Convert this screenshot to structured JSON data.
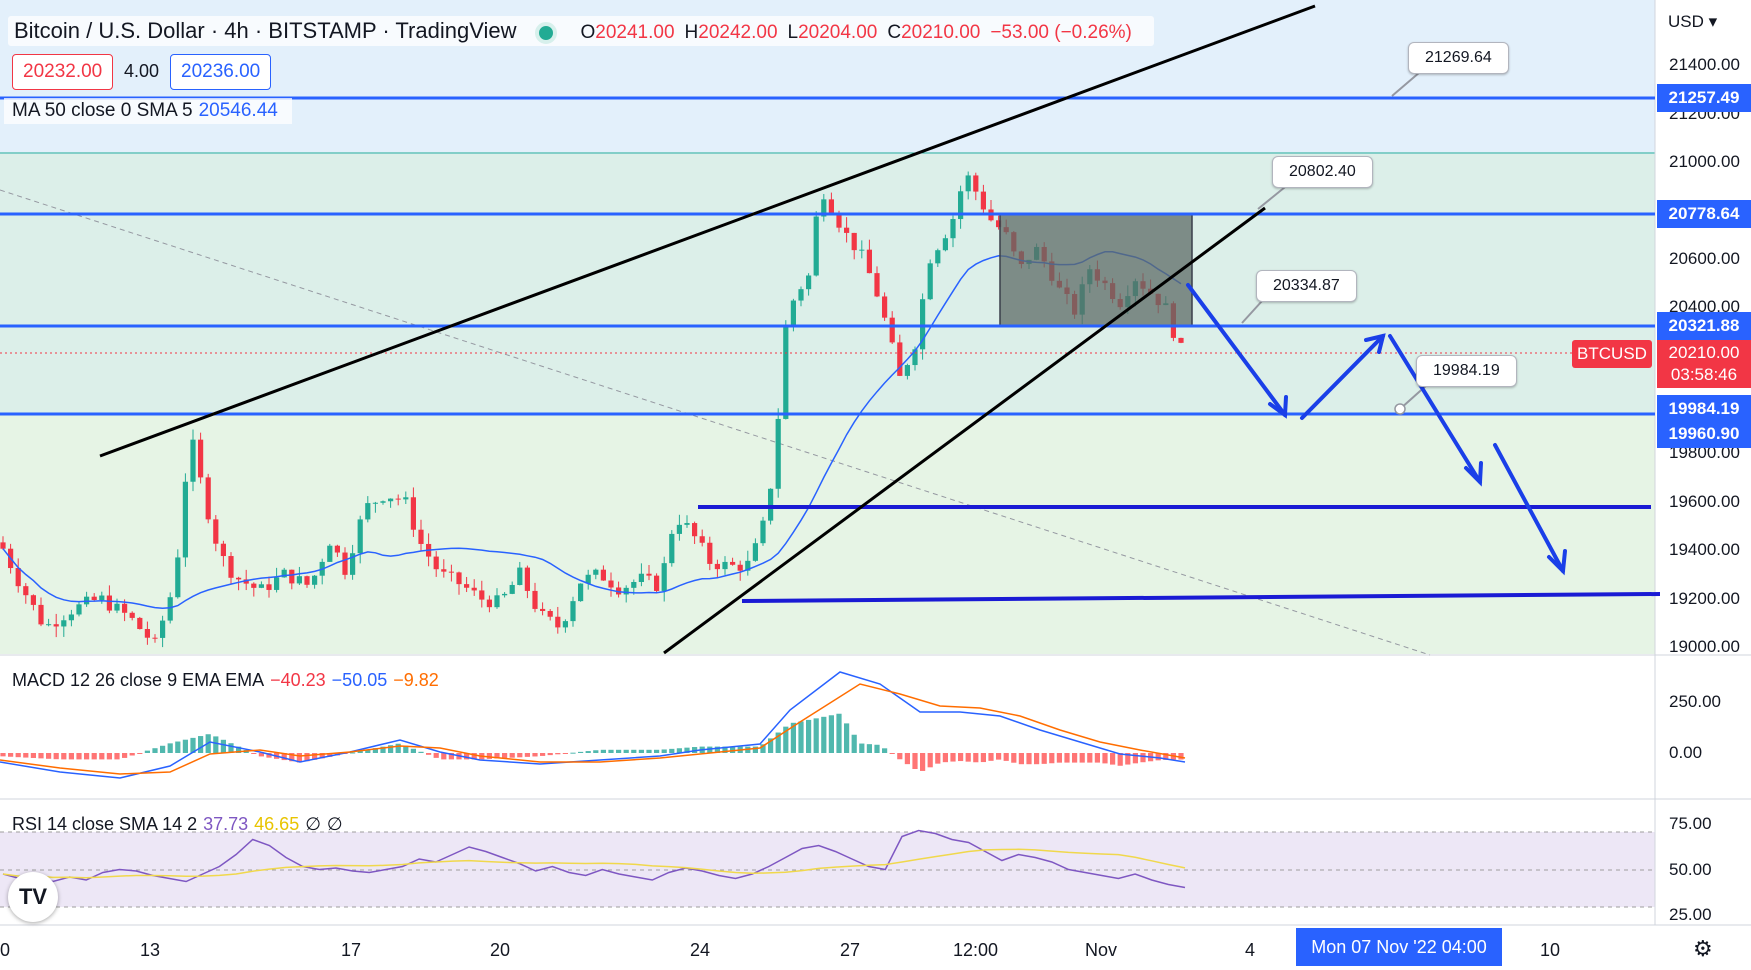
{
  "header": {
    "symbol": "Bitcoin / U.S. Dollar · 4h · BITSTAMP · TradingView",
    "ohlc": {
      "o_label": "O",
      "o": "20241.00",
      "h_label": "H",
      "h": "20242.00",
      "l_label": "L",
      "l": "20204.00",
      "c_label": "C",
      "c": "20210.00",
      "change": "−53.00 (−0.26%)"
    },
    "bid": "20232.00",
    "spread": "4.00",
    "ask": "20236.00"
  },
  "ma_legend": {
    "label": "MA 50 close 0 SMA 5",
    "value": "20546.44"
  },
  "macd_legend": {
    "label": "MACD 12 26 close 9 EMA EMA",
    "v1": "−40.23",
    "v2": "−50.05",
    "v3": "−9.82"
  },
  "rsi_legend": {
    "label": "RSI 14 close SMA 14 2",
    "v1": "37.73",
    "v2": "46.65",
    "v3": "∅",
    "v4": "∅"
  },
  "price_axis": {
    "currency": "USD",
    "ticks": [
      "21400.00",
      "21200.00",
      "21000.00",
      "20600.00",
      "20400.00",
      "19800.00",
      "19600.00",
      "19400.00",
      "19200.00",
      "19000.00"
    ],
    "tags": [
      "21257.49",
      "20778.64",
      "20321.88",
      "19984.19",
      "19960.90"
    ],
    "current_symbol": "BTCUSD",
    "current_price": "20210.00",
    "countdown": "03:58:46"
  },
  "callouts": [
    "21269.64",
    "20802.40",
    "20334.87",
    "19984.19"
  ],
  "macd_axis": [
    "250.00",
    "0.00"
  ],
  "rsi_axis": [
    "75.00",
    "50.00",
    "25.00"
  ],
  "time_axis": {
    "labels": [
      "0",
      "13",
      "17",
      "20",
      "24",
      "27",
      "12:00",
      "Nov",
      "4",
      "10"
    ],
    "highlight": "Mon 07 Nov '22   04:00"
  },
  "logo": "TV",
  "colors": {
    "up": "#22ab94",
    "down": "#f23645",
    "accent": "#2962ff",
    "ma": "#2962ff",
    "macd": "#2962ff",
    "signal": "#ff6d00",
    "rsi": "#7e57c2",
    "rsi_ma": "#f0d84c"
  },
  "chart_data": {
    "type": "candlestick",
    "price_levels": [
      21257.49,
      20778.64,
      20321.88,
      19960.9,
      19600,
      19200
    ],
    "current_price": 20210.0,
    "ma50_last": 20546.44,
    "macd_last": {
      "macd": -40.23,
      "signal": -50.05,
      "hist": -9.82
    },
    "rsi_last": {
      "rsi": 37.73,
      "sma": 46.65
    },
    "price_ylim": [
      19000,
      21400
    ],
    "rsi_ylim": [
      25,
      75
    ]
  }
}
